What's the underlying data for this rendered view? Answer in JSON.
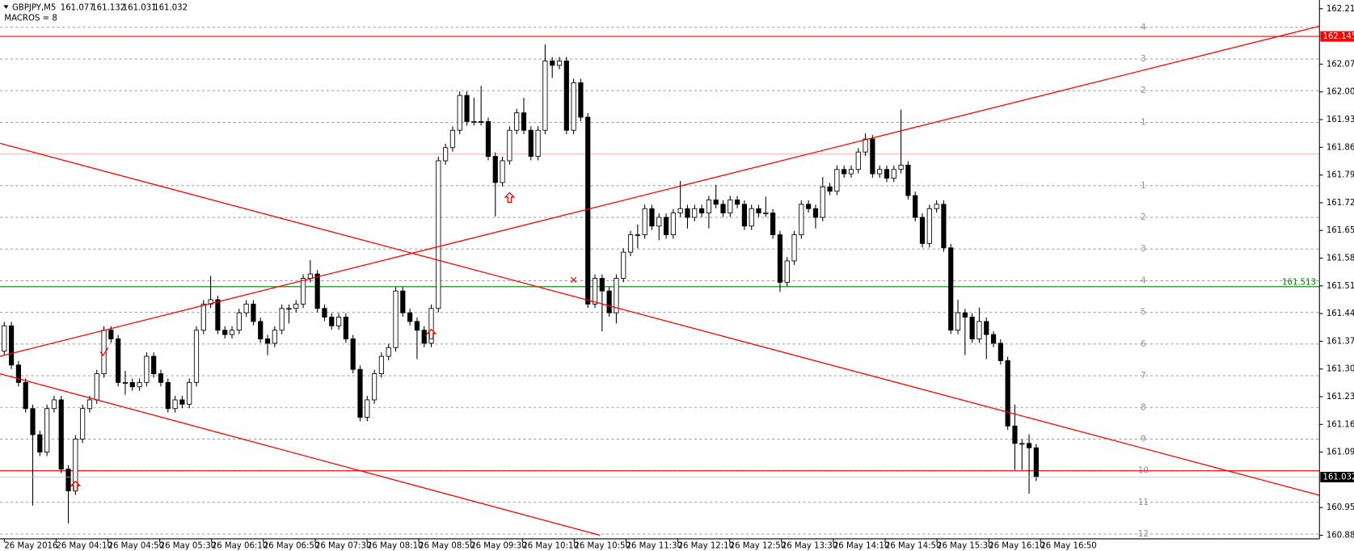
{
  "chart_data": {
    "type": "candlestick",
    "symbol": "GBPJPY,M5",
    "quote": [
      161.077,
      161.132,
      161.031,
      161.032
    ],
    "macros": "MACROS = 8",
    "ylim": [
      160.876,
      162.237
    ],
    "xlim": [
      -0.6,
      184.8
    ],
    "yticks": [
      162.215,
      162.075,
      162.005,
      161.935,
      161.865,
      161.795,
      161.725,
      161.655,
      161.585,
      161.515,
      161.445,
      161.375,
      161.305,
      161.235,
      161.165,
      161.095,
      160.955,
      160.885
    ],
    "x_labels": [
      "26 May 2016",
      "26 May 04:10",
      "26 May 04:50",
      "26 May 05:30",
      "26 May 06:10",
      "26 May 06:50",
      "26 May 07:30",
      "26 May 08:10",
      "26 May 08:50",
      "26 May 09:30",
      "26 May 10:10",
      "26 May 10:50",
      "26 May 11:30",
      "26 May 12:10",
      "26 May 12:50",
      "26 May 13:30",
      "26 May 14:10",
      "26 May 14:50",
      "26 May 15:30",
      "26 May 16:10",
      "26 May 16:50"
    ],
    "up_color": "#ffffff",
    "down_color": "#000000",
    "ohlc": [
      [
        161.35,
        161.424,
        161.34,
        161.414
      ],
      [
        161.414,
        161.424,
        161.305,
        161.315
      ],
      [
        161.315,
        161.325,
        161.261,
        161.271
      ],
      [
        161.271,
        161.281,
        161.195,
        161.205
      ],
      [
        161.205,
        161.215,
        160.96,
        161.139
      ],
      [
        161.139,
        161.149,
        161.085,
        161.095
      ],
      [
        161.095,
        161.215,
        161.085,
        161.205
      ],
      [
        161.205,
        161.237,
        161.195,
        161.227
      ],
      [
        161.227,
        161.237,
        161.042,
        161.052
      ],
      [
        161.052,
        161.062,
        160.915,
        160.997
      ],
      [
        160.997,
        161.138,
        160.987,
        161.128
      ],
      [
        161.128,
        161.215,
        161.118,
        161.205
      ],
      [
        161.205,
        161.237,
        161.195,
        161.227
      ],
      [
        161.227,
        161.303,
        161.217,
        161.293
      ],
      [
        161.293,
        161.413,
        161.283,
        161.403
      ],
      [
        161.403,
        161.413,
        161.371,
        161.381
      ],
      [
        161.381,
        161.391,
        161.261,
        161.271
      ],
      [
        161.271,
        161.3,
        161.24,
        161.271
      ],
      [
        161.271,
        161.281,
        161.25,
        161.26
      ],
      [
        161.26,
        161.281,
        161.25,
        161.271
      ],
      [
        161.271,
        161.347,
        161.261,
        161.337
      ],
      [
        161.337,
        161.347,
        161.283,
        161.293
      ],
      [
        161.293,
        161.303,
        161.261,
        161.271
      ],
      [
        161.271,
        161.281,
        161.195,
        161.205
      ],
      [
        161.205,
        161.237,
        161.195,
        161.227
      ],
      [
        161.227,
        161.237,
        161.206,
        161.216
      ],
      [
        161.216,
        161.281,
        161.206,
        161.271
      ],
      [
        161.271,
        161.413,
        161.261,
        161.403
      ],
      [
        161.403,
        161.479,
        161.393,
        161.469
      ],
      [
        161.469,
        161.54,
        161.459,
        161.48
      ],
      [
        161.48,
        161.49,
        161.393,
        161.403
      ],
      [
        161.403,
        161.413,
        161.382,
        161.392
      ],
      [
        161.392,
        161.413,
        161.382,
        161.403
      ],
      [
        161.403,
        161.457,
        161.393,
        161.447
      ],
      [
        161.447,
        161.479,
        161.437,
        161.469
      ],
      [
        161.469,
        161.479,
        161.415,
        161.425
      ],
      [
        161.425,
        161.435,
        161.371,
        161.381
      ],
      [
        161.381,
        161.391,
        161.34,
        161.37
      ],
      [
        161.37,
        161.413,
        161.36,
        161.403
      ],
      [
        161.403,
        161.468,
        161.393,
        161.458
      ],
      [
        161.458,
        161.468,
        161.42,
        161.458
      ],
      [
        161.458,
        161.479,
        161.448,
        161.469
      ],
      [
        161.469,
        161.544,
        161.459,
        161.534
      ],
      [
        161.534,
        161.58,
        161.524,
        161.545
      ],
      [
        161.545,
        161.555,
        161.448,
        161.458
      ],
      [
        161.458,
        161.468,
        161.426,
        161.436
      ],
      [
        161.436,
        161.446,
        161.404,
        161.414
      ],
      [
        161.414,
        161.446,
        161.404,
        161.436
      ],
      [
        161.436,
        161.446,
        161.371,
        161.381
      ],
      [
        161.381,
        161.391,
        161.294,
        161.304
      ],
      [
        161.304,
        161.314,
        161.173,
        161.183
      ],
      [
        161.183,
        161.237,
        161.173,
        161.227
      ],
      [
        161.227,
        161.303,
        161.217,
        161.293
      ],
      [
        161.293,
        161.347,
        161.283,
        161.337
      ],
      [
        161.337,
        161.369,
        161.327,
        161.359
      ],
      [
        161.359,
        161.512,
        161.349,
        161.502
      ],
      [
        161.502,
        161.512,
        161.437,
        161.447
      ],
      [
        161.447,
        161.457,
        161.415,
        161.425
      ],
      [
        161.425,
        161.435,
        161.33,
        161.403
      ],
      [
        161.403,
        161.413,
        161.36,
        161.37
      ],
      [
        161.37,
        161.468,
        161.36,
        161.458
      ],
      [
        161.458,
        161.841,
        161.448,
        161.831
      ],
      [
        161.831,
        161.874,
        161.821,
        161.864
      ],
      [
        161.864,
        161.918,
        161.854,
        161.908
      ],
      [
        161.908,
        162.006,
        161.898,
        161.996
      ],
      [
        161.996,
        162.006,
        161.92,
        161.93
      ],
      [
        161.93,
        161.99,
        161.92,
        161.93
      ],
      [
        161.93,
        162.02,
        161.92,
        161.93
      ],
      [
        161.93,
        161.94,
        161.832,
        161.842
      ],
      [
        161.842,
        161.852,
        161.69,
        161.776
      ],
      [
        161.776,
        161.841,
        161.766,
        161.831
      ],
      [
        161.831,
        161.918,
        161.821,
        161.908
      ],
      [
        161.908,
        161.962,
        161.898,
        161.952
      ],
      [
        161.952,
        161.99,
        161.898,
        161.908
      ],
      [
        161.908,
        161.918,
        161.832,
        161.842
      ],
      [
        161.842,
        161.918,
        161.832,
        161.908
      ],
      [
        161.908,
        162.125,
        161.898,
        162.083
      ],
      [
        162.083,
        162.093,
        162.04,
        162.072
      ],
      [
        162.072,
        162.093,
        162.062,
        162.083
      ],
      [
        162.083,
        162.093,
        161.898,
        161.908
      ],
      [
        161.908,
        162.038,
        161.898,
        162.028
      ],
      [
        162.028,
        162.038,
        161.931,
        161.941
      ],
      [
        161.941,
        161.951,
        161.459,
        161.469
      ],
      [
        161.469,
        161.544,
        161.459,
        161.534
      ],
      [
        161.534,
        161.544,
        161.4,
        161.502
      ],
      [
        161.502,
        161.512,
        161.437,
        161.447
      ],
      [
        161.447,
        161.544,
        161.42,
        161.534
      ],
      [
        161.534,
        161.61,
        161.524,
        161.6
      ],
      [
        161.6,
        161.654,
        161.59,
        161.644
      ],
      [
        161.644,
        161.67,
        161.61,
        161.644
      ],
      [
        161.644,
        161.72,
        161.634,
        161.71
      ],
      [
        161.71,
        161.72,
        161.656,
        161.666
      ],
      [
        161.666,
        161.698,
        161.63,
        161.688
      ],
      [
        161.688,
        161.698,
        161.634,
        161.644
      ],
      [
        161.644,
        161.709,
        161.634,
        161.699
      ],
      [
        161.699,
        161.78,
        161.689,
        161.71
      ],
      [
        161.71,
        161.72,
        161.66,
        161.688
      ],
      [
        161.688,
        161.72,
        161.678,
        161.71
      ],
      [
        161.71,
        161.72,
        161.689,
        161.699
      ],
      [
        161.699,
        161.742,
        161.66,
        161.732
      ],
      [
        161.732,
        161.77,
        161.711,
        161.721
      ],
      [
        161.721,
        161.731,
        161.689,
        161.699
      ],
      [
        161.699,
        161.742,
        161.689,
        161.732
      ],
      [
        161.732,
        161.742,
        161.711,
        161.721
      ],
      [
        161.721,
        161.731,
        161.656,
        161.666
      ],
      [
        161.666,
        161.72,
        161.656,
        161.71
      ],
      [
        161.71,
        161.72,
        161.689,
        161.699
      ],
      [
        161.699,
        161.74,
        161.689,
        161.699
      ],
      [
        161.699,
        161.709,
        161.634,
        161.644
      ],
      [
        161.644,
        161.654,
        161.5,
        161.524
      ],
      [
        161.524,
        161.588,
        161.514,
        161.578
      ],
      [
        161.578,
        161.654,
        161.568,
        161.644
      ],
      [
        161.644,
        161.731,
        161.634,
        161.721
      ],
      [
        161.721,
        161.731,
        161.7,
        161.71
      ],
      [
        161.71,
        161.72,
        161.66,
        161.688
      ],
      [
        161.688,
        161.79,
        161.678,
        161.765
      ],
      [
        161.765,
        161.775,
        161.744,
        161.754
      ],
      [
        161.754,
        161.819,
        161.744,
        161.809
      ],
      [
        161.809,
        161.819,
        161.788,
        161.798
      ],
      [
        161.798,
        161.819,
        161.788,
        161.809
      ],
      [
        161.809,
        161.863,
        161.799,
        161.853
      ],
      [
        161.853,
        161.9,
        161.843,
        161.886
      ],
      [
        161.886,
        161.896,
        161.788,
        161.798
      ],
      [
        161.798,
        161.819,
        161.788,
        161.809
      ],
      [
        161.809,
        161.819,
        161.777,
        161.787
      ],
      [
        161.787,
        161.819,
        161.777,
        161.809
      ],
      [
        161.809,
        161.96,
        161.799,
        161.82
      ],
      [
        161.82,
        161.83,
        161.733,
        161.743
      ],
      [
        161.743,
        161.753,
        161.678,
        161.688
      ],
      [
        161.688,
        161.698,
        161.612,
        161.622
      ],
      [
        161.622,
        161.72,
        161.612,
        161.71
      ],
      [
        161.71,
        161.731,
        161.7,
        161.721
      ],
      [
        161.721,
        161.731,
        161.601,
        161.611
      ],
      [
        161.611,
        161.621,
        161.393,
        161.403
      ],
      [
        161.403,
        161.48,
        161.393,
        161.447
      ],
      [
        161.447,
        161.457,
        161.34,
        161.436
      ],
      [
        161.436,
        161.446,
        161.371,
        161.381
      ],
      [
        161.381,
        161.46,
        161.371,
        161.425
      ],
      [
        161.425,
        161.435,
        161.33,
        161.392
      ],
      [
        161.392,
        161.4,
        161.36,
        161.37
      ],
      [
        161.37,
        161.38,
        161.316,
        161.326
      ],
      [
        161.326,
        161.336,
        161.151,
        161.161
      ],
      [
        161.161,
        161.215,
        161.05,
        161.117
      ],
      [
        161.117,
        161.127,
        161.05,
        161.117
      ],
      [
        161.117,
        161.14,
        160.99,
        161.106
      ],
      [
        161.106,
        161.116,
        161.022,
        161.032
      ]
    ],
    "levels": [
      {
        "value": 162.168,
        "label": "4"
      },
      {
        "value": 162.088,
        "label": "3"
      },
      {
        "value": 162.008,
        "label": "2"
      },
      {
        "value": 161.928,
        "label": "1"
      },
      {
        "value": 161.768,
        "label": "1"
      },
      {
        "value": 161.688,
        "label": "2"
      },
      {
        "value": 161.608,
        "label": "3"
      },
      {
        "value": 161.528,
        "label": "4"
      },
      {
        "value": 161.448,
        "label": "5"
      },
      {
        "value": 161.368,
        "label": "6"
      },
      {
        "value": 161.288,
        "label": "7"
      },
      {
        "value": 161.208,
        "label": "8"
      },
      {
        "value": 161.128,
        "label": "9"
      },
      {
        "value": 161.048,
        "label": "10"
      },
      {
        "value": 160.968,
        "label": "11"
      },
      {
        "value": 160.888,
        "label": "12"
      }
    ],
    "level_color": "#8c8c8c",
    "hlines": [
      {
        "value": 162.145,
        "color": "#ff0000",
        "style": "box"
      },
      {
        "value": 161.513,
        "color": "#008000",
        "style": "text"
      },
      {
        "value": 161.048,
        "color": "#ff0000"
      },
      {
        "value": 161.848,
        "color": "#ffb4b4"
      }
    ],
    "trendlines": [
      {
        "x": [
          -0.6,
          184.8
        ],
        "y": [
          161.337,
          162.171
        ],
        "color": "#ff0000"
      },
      {
        "x": [
          -0.6,
          184.8
        ],
        "y": [
          161.875,
          160.986
        ],
        "color": "#ff0000"
      },
      {
        "x": [
          -0.6,
          83.7
        ],
        "y": [
          161.293,
          160.885
        ],
        "color": "#ff0000"
      }
    ],
    "markers": [
      {
        "x": 10,
        "y": 161.008,
        "kind": "up"
      },
      {
        "x": 14,
        "y": 161.348,
        "kind": "check"
      },
      {
        "x": 60,
        "y": 161.392,
        "kind": "up"
      },
      {
        "x": 71,
        "y": 161.737,
        "kind": "up"
      },
      {
        "x": 80,
        "y": 161.53,
        "kind": "cross"
      }
    ],
    "marker_color": "#ff0000"
  }
}
